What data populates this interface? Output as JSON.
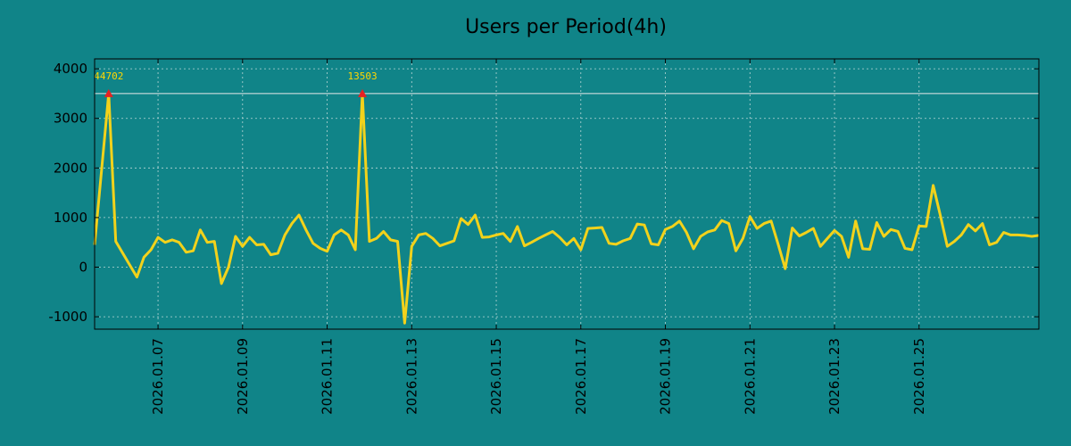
{
  "chart_data": {
    "type": "line",
    "title": "Users per Period(4h)",
    "xlabel": "",
    "ylabel": "",
    "ylim": [
      -1250,
      4200
    ],
    "yticks": [
      4000,
      3000,
      2000,
      1000,
      0,
      -1000
    ],
    "ytick_labels": [
      "4000",
      "3000",
      "2000",
      "1000",
      "0",
      "-1000"
    ],
    "x_range": [
      "2026-01-05 12:00",
      "2026-01-27 20:00"
    ],
    "xticks": [
      "2026-01-07",
      "2026-01-09",
      "2026-01-11",
      "2026-01-13",
      "2026-01-15",
      "2026-01-17",
      "2026-01-19",
      "2026-01-21",
      "2026-01-23",
      "2026-01-25"
    ],
    "xtick_labels": [
      "2026.01.07",
      "2026.01.09",
      "2026.01.11",
      "2026.01.13",
      "2026.01.15",
      "2026.01.17",
      "2026.01.19",
      "2026.01.21",
      "2026.01.23",
      "2026.01.25"
    ],
    "grid": true,
    "threshold_line": 3500,
    "series": [
      {
        "color": "#f2d21b",
        "points": [
          [
            "2026-01-05 12:00",
            450
          ],
          [
            "2026-01-05 20:00",
            3500
          ],
          [
            "2026-01-06 00:00",
            520
          ],
          [
            "2026-01-06 12:00",
            -200
          ],
          [
            "2026-01-06 16:00",
            200
          ],
          [
            "2026-01-06 20:00",
            350
          ],
          [
            "2026-01-07 00:00",
            600
          ],
          [
            "2026-01-07 04:00",
            500
          ],
          [
            "2026-01-07 08:00",
            550
          ],
          [
            "2026-01-07 12:00",
            500
          ],
          [
            "2026-01-07 16:00",
            300
          ],
          [
            "2026-01-07 20:00",
            330
          ],
          [
            "2026-01-08 00:00",
            750
          ],
          [
            "2026-01-08 04:00",
            500
          ],
          [
            "2026-01-08 08:00",
            520
          ],
          [
            "2026-01-08 12:00",
            -330
          ],
          [
            "2026-01-08 16:00",
            0
          ],
          [
            "2026-01-08 20:00",
            620
          ],
          [
            "2026-01-09 00:00",
            420
          ],
          [
            "2026-01-09 04:00",
            600
          ],
          [
            "2026-01-09 08:00",
            450
          ],
          [
            "2026-01-09 12:00",
            460
          ],
          [
            "2026-01-09 16:00",
            250
          ],
          [
            "2026-01-09 20:00",
            280
          ],
          [
            "2026-01-10 00:00",
            650
          ],
          [
            "2026-01-10 04:00",
            880
          ],
          [
            "2026-01-10 08:00",
            1050
          ],
          [
            "2026-01-10 12:00",
            750
          ],
          [
            "2026-01-10 16:00",
            480
          ],
          [
            "2026-01-10 20:00",
            380
          ],
          [
            "2026-01-11 00:00",
            320
          ],
          [
            "2026-01-11 04:00",
            650
          ],
          [
            "2026-01-11 08:00",
            750
          ],
          [
            "2026-01-11 12:00",
            650
          ],
          [
            "2026-01-11 16:00",
            350
          ],
          [
            "2026-01-11 20:00",
            3500
          ],
          [
            "2026-01-12 00:00",
            520
          ],
          [
            "2026-01-12 04:00",
            580
          ],
          [
            "2026-01-12 08:00",
            720
          ],
          [
            "2026-01-12 12:00",
            550
          ],
          [
            "2026-01-12 16:00",
            520
          ],
          [
            "2026-01-12 20:00",
            -1130
          ],
          [
            "2026-01-13 00:00",
            420
          ],
          [
            "2026-01-13 04:00",
            650
          ],
          [
            "2026-01-13 08:00",
            680
          ],
          [
            "2026-01-13 12:00",
            580
          ],
          [
            "2026-01-13 16:00",
            430
          ],
          [
            "2026-01-13 20:00",
            480
          ],
          [
            "2026-01-14 00:00",
            530
          ],
          [
            "2026-01-14 04:00",
            980
          ],
          [
            "2026-01-14 08:00",
            860
          ],
          [
            "2026-01-14 12:00",
            1050
          ],
          [
            "2026-01-14 16:00",
            600
          ],
          [
            "2026-01-14 20:00",
            610
          ],
          [
            "2026-01-15 00:00",
            650
          ],
          [
            "2026-01-15 04:00",
            680
          ],
          [
            "2026-01-15 08:00",
            520
          ],
          [
            "2026-01-15 12:00",
            820
          ],
          [
            "2026-01-15 16:00",
            430
          ],
          [
            "2026-01-15 20:00",
            500
          ],
          [
            "2026-01-16 00:00",
            580
          ],
          [
            "2026-01-16 04:00",
            650
          ],
          [
            "2026-01-16 08:00",
            720
          ],
          [
            "2026-01-16 12:00",
            600
          ],
          [
            "2026-01-16 16:00",
            450
          ],
          [
            "2026-01-16 20:00",
            580
          ],
          [
            "2026-01-17 00:00",
            350
          ],
          [
            "2026-01-17 04:00",
            780
          ],
          [
            "2026-01-17 08:00",
            790
          ],
          [
            "2026-01-17 12:00",
            800
          ],
          [
            "2026-01-17 16:00",
            480
          ],
          [
            "2026-01-17 20:00",
            460
          ],
          [
            "2026-01-18 00:00",
            530
          ],
          [
            "2026-01-18 04:00",
            580
          ],
          [
            "2026-01-18 08:00",
            870
          ],
          [
            "2026-01-18 12:00",
            850
          ],
          [
            "2026-01-18 16:00",
            470
          ],
          [
            "2026-01-18 20:00",
            450
          ],
          [
            "2026-01-19 00:00",
            760
          ],
          [
            "2026-01-19 04:00",
            820
          ],
          [
            "2026-01-19 08:00",
            930
          ],
          [
            "2026-01-19 12:00",
            700
          ],
          [
            "2026-01-19 16:00",
            370
          ],
          [
            "2026-01-19 20:00",
            620
          ],
          [
            "2026-01-20 00:00",
            710
          ],
          [
            "2026-01-20 04:00",
            750
          ],
          [
            "2026-01-20 08:00",
            940
          ],
          [
            "2026-01-20 12:00",
            880
          ],
          [
            "2026-01-20 16:00",
            330
          ],
          [
            "2026-01-20 20:00",
            580
          ],
          [
            "2026-01-21 00:00",
            1020
          ],
          [
            "2026-01-21 04:00",
            780
          ],
          [
            "2026-01-21 08:00",
            880
          ],
          [
            "2026-01-21 12:00",
            930
          ],
          [
            "2026-01-21 16:00",
            460
          ],
          [
            "2026-01-21 20:00",
            -30
          ],
          [
            "2026-01-22 00:00",
            790
          ],
          [
            "2026-01-22 04:00",
            630
          ],
          [
            "2026-01-22 08:00",
            700
          ],
          [
            "2026-01-22 12:00",
            780
          ],
          [
            "2026-01-22 16:00",
            420
          ],
          [
            "2026-01-22 20:00",
            580
          ],
          [
            "2026-01-23 00:00",
            740
          ],
          [
            "2026-01-23 04:00",
            620
          ],
          [
            "2026-01-23 08:00",
            200
          ],
          [
            "2026-01-23 12:00",
            930
          ],
          [
            "2026-01-23 16:00",
            370
          ],
          [
            "2026-01-23 20:00",
            360
          ],
          [
            "2026-01-24 00:00",
            900
          ],
          [
            "2026-01-24 04:00",
            620
          ],
          [
            "2026-01-24 08:00",
            760
          ],
          [
            "2026-01-24 12:00",
            720
          ],
          [
            "2026-01-24 16:00",
            380
          ],
          [
            "2026-01-24 20:00",
            350
          ],
          [
            "2026-01-25 00:00",
            830
          ],
          [
            "2026-01-25 04:00",
            820
          ],
          [
            "2026-01-25 08:00",
            1650
          ],
          [
            "2026-01-25 12:00",
            1050
          ],
          [
            "2026-01-25 16:00",
            420
          ],
          [
            "2026-01-25 20:00",
            520
          ],
          [
            "2026-01-26 00:00",
            650
          ],
          [
            "2026-01-26 04:00",
            860
          ],
          [
            "2026-01-26 08:00",
            730
          ],
          [
            "2026-01-26 12:00",
            880
          ],
          [
            "2026-01-26 16:00",
            450
          ],
          [
            "2026-01-26 20:00",
            500
          ],
          [
            "2026-01-27 00:00",
            700
          ],
          [
            "2026-01-27 04:00",
            650
          ],
          [
            "2026-01-27 08:00",
            650
          ],
          [
            "2026-01-27 12:00",
            640
          ],
          [
            "2026-01-27 16:00",
            620
          ],
          [
            "2026-01-27 20:00",
            640
          ]
        ]
      }
    ],
    "annotations": [
      {
        "x": "2026-01-05 20:00",
        "y": 3500,
        "label": "44702"
      },
      {
        "x": "2026-01-11 20:00",
        "y": 3500,
        "label": "13503"
      }
    ],
    "colors": {
      "background": "#108488",
      "line": "#f2d21b",
      "threshold": "#e8e8e8",
      "marker": "#e52222",
      "annotation": "#ffd700",
      "grid": "#b9d7d6"
    }
  }
}
